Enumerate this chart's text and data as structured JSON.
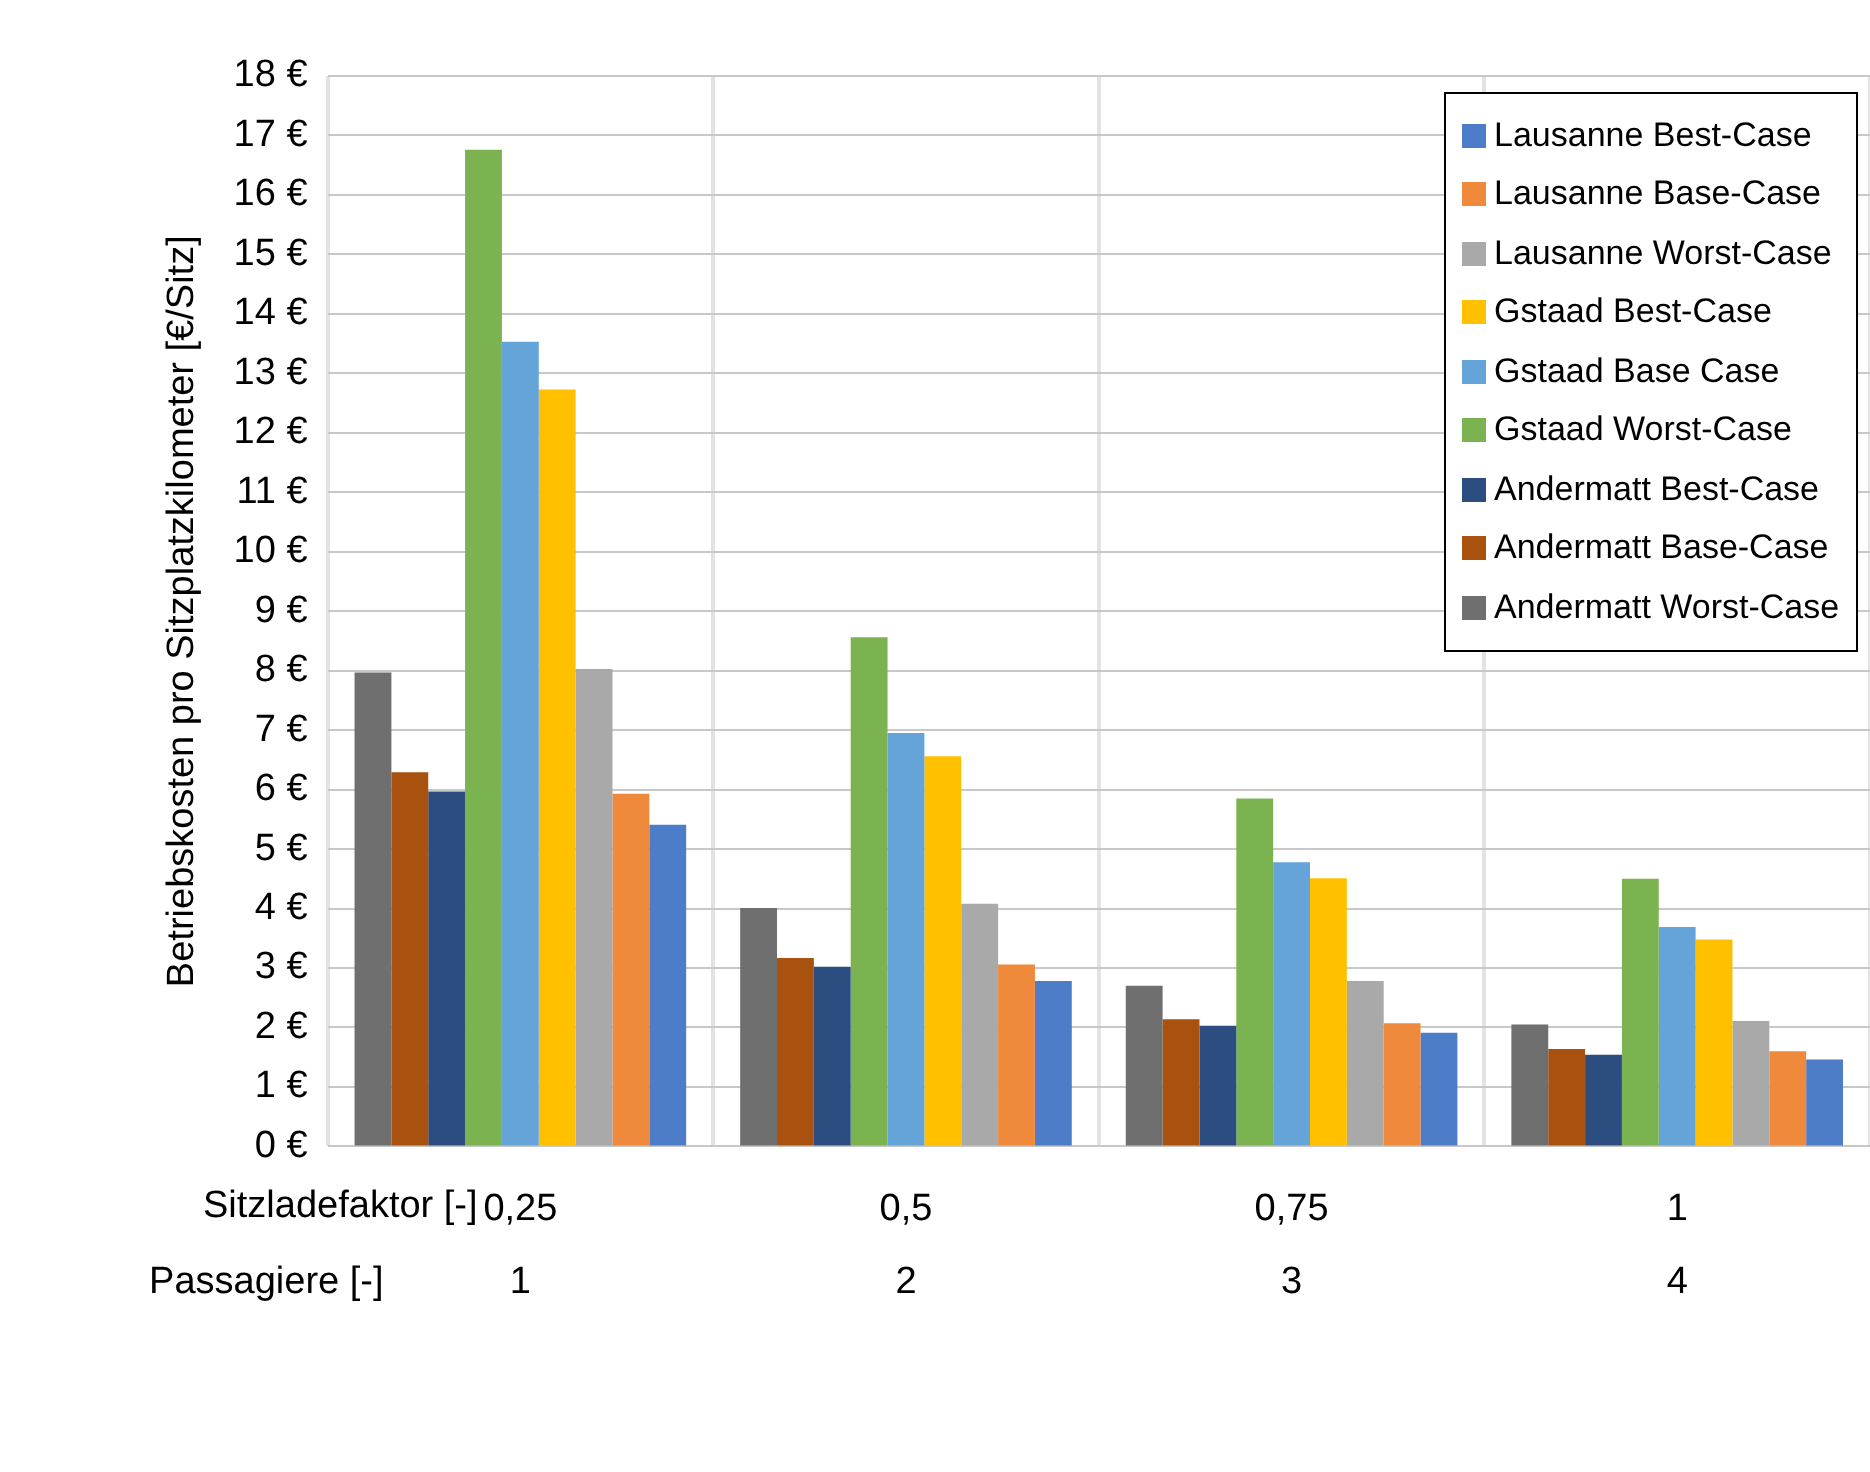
{
  "chart_data": {
    "type": "bar",
    "ylabel": "Betriebskosten pro Sitzplatzkilometer [€/Sitz]",
    "xlabel": "Sitzladefaktor [-]",
    "categories": [
      "0,25",
      "0,5",
      "0,75",
      "1"
    ],
    "series": [
      {
        "name": "Andermatt Worst-Case",
        "color": "#6f6f6f",
        "values": [
          7.97,
          4.01,
          2.7,
          2.05
        ]
      },
      {
        "name": "Andermatt Base-Case",
        "color": "#a9510f",
        "values": [
          6.29,
          3.17,
          2.14,
          1.64
        ]
      },
      {
        "name": "Andermatt Best-Case",
        "color": "#2c4d80",
        "values": [
          5.97,
          3.02,
          2.03,
          1.54
        ]
      },
      {
        "name": "Gstaad Worst-Case",
        "color": "#7cb351",
        "values": [
          16.76,
          8.56,
          5.85,
          4.5
        ]
      },
      {
        "name": "Gstaad Base Case",
        "color": "#65a4d9",
        "values": [
          13.53,
          6.95,
          4.78,
          3.69
        ]
      },
      {
        "name": "Gstaad Best-Case",
        "color": "#ffc000",
        "values": [
          12.73,
          6.56,
          4.51,
          3.48
        ]
      },
      {
        "name": "Lausanne Worst-Case",
        "color": "#a9a9a9",
        "values": [
          8.03,
          4.08,
          2.78,
          2.11
        ]
      },
      {
        "name": "Lausanne Base-Case",
        "color": "#ef8a3c",
        "values": [
          5.93,
          3.06,
          2.07,
          1.6
        ]
      },
      {
        "name": "Lausanne Best-Case",
        "color": "#4d7cc8",
        "values": [
          5.41,
          2.78,
          1.91,
          1.46
        ]
      }
    ],
    "ylim": [
      0,
      18
    ],
    "yticks": [
      {
        "value": 0,
        "label": "0 €"
      },
      {
        "value": 1,
        "label": "1 €"
      },
      {
        "value": 2,
        "label": "2 €"
      },
      {
        "value": 3,
        "label": "3 €"
      },
      {
        "value": 4,
        "label": "4 €"
      },
      {
        "value": 5,
        "label": "5 €"
      },
      {
        "value": 6,
        "label": "6 €"
      },
      {
        "value": 7,
        "label": "7 €"
      },
      {
        "value": 8,
        "label": "8 €"
      },
      {
        "value": 9,
        "label": "9 €"
      },
      {
        "value": 10,
        "label": "10 €"
      },
      {
        "value": 11,
        "label": "11 €"
      },
      {
        "value": 12,
        "label": "12 €"
      },
      {
        "value": 13,
        "label": "13 €"
      },
      {
        "value": 14,
        "label": "14 €"
      },
      {
        "value": 15,
        "label": "15 €"
      },
      {
        "value": 16,
        "label": "16 €"
      },
      {
        "value": 17,
        "label": "17 €"
      },
      {
        "value": 18,
        "label": "18 €"
      }
    ],
    "annotations": [
      "Passagiere [-]",
      "1",
      "2",
      "3",
      "4"
    ],
    "grid": true,
    "legend": "top right"
  }
}
